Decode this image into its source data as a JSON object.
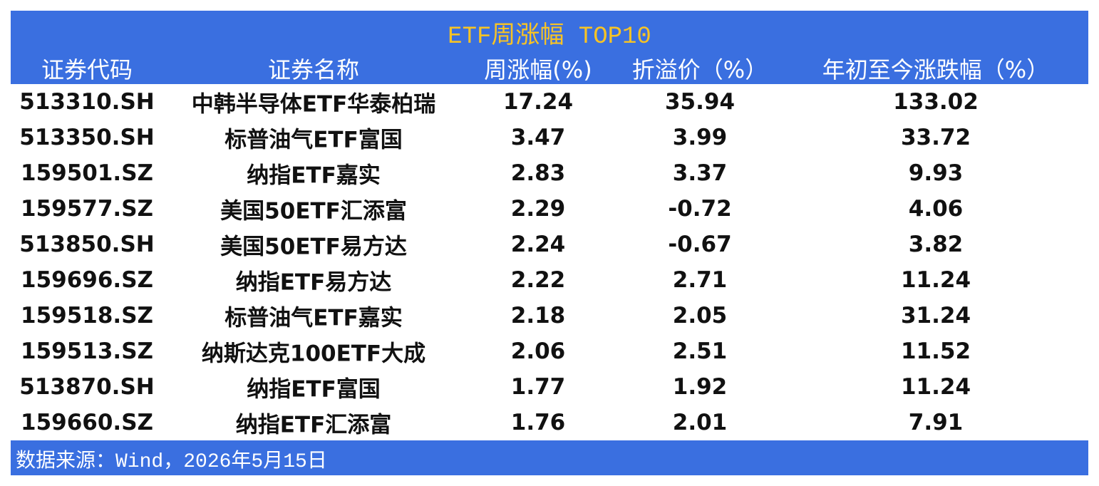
{
  "header": {
    "title": "ETF周涨幅 TOP10",
    "columns": [
      "证券代码",
      "证券名称",
      "周涨幅(%)",
      "折溢价（%）",
      "年初至今涨跌幅（%）"
    ]
  },
  "table": {
    "rows": [
      [
        "513310.SH",
        "中韩半导体ETF华泰柏瑞",
        17.24,
        35.94,
        133.02
      ],
      [
        "513350.SH",
        "标普油气ETF富国",
        3.47,
        3.99,
        33.72
      ],
      [
        "159501.SZ",
        "纳指ETF嘉实",
        2.83,
        3.37,
        9.93
      ],
      [
        "159577.SZ",
        "美国50ETF汇添富",
        2.29,
        -0.72,
        4.06
      ],
      [
        "513850.SH",
        "美国50ETF易方达",
        2.24,
        -0.67,
        3.82
      ],
      [
        "159696.SZ",
        "纳指ETF易方达",
        2.22,
        2.71,
        11.24
      ],
      [
        "159518.SZ",
        "标普油气ETF嘉实",
        2.18,
        2.05,
        31.24
      ],
      [
        "159513.SZ",
        "纳斯达克100ETF大成",
        2.06,
        2.51,
        11.52
      ],
      [
        "513870.SH",
        "纳指ETF富国",
        1.77,
        1.92,
        11.24
      ],
      [
        "159660.SZ",
        "纳指ETF汇添富",
        1.76,
        2.01,
        7.91
      ]
    ]
  },
  "footer": {
    "source": "数据来源：Wind，2026年5月15日"
  }
}
